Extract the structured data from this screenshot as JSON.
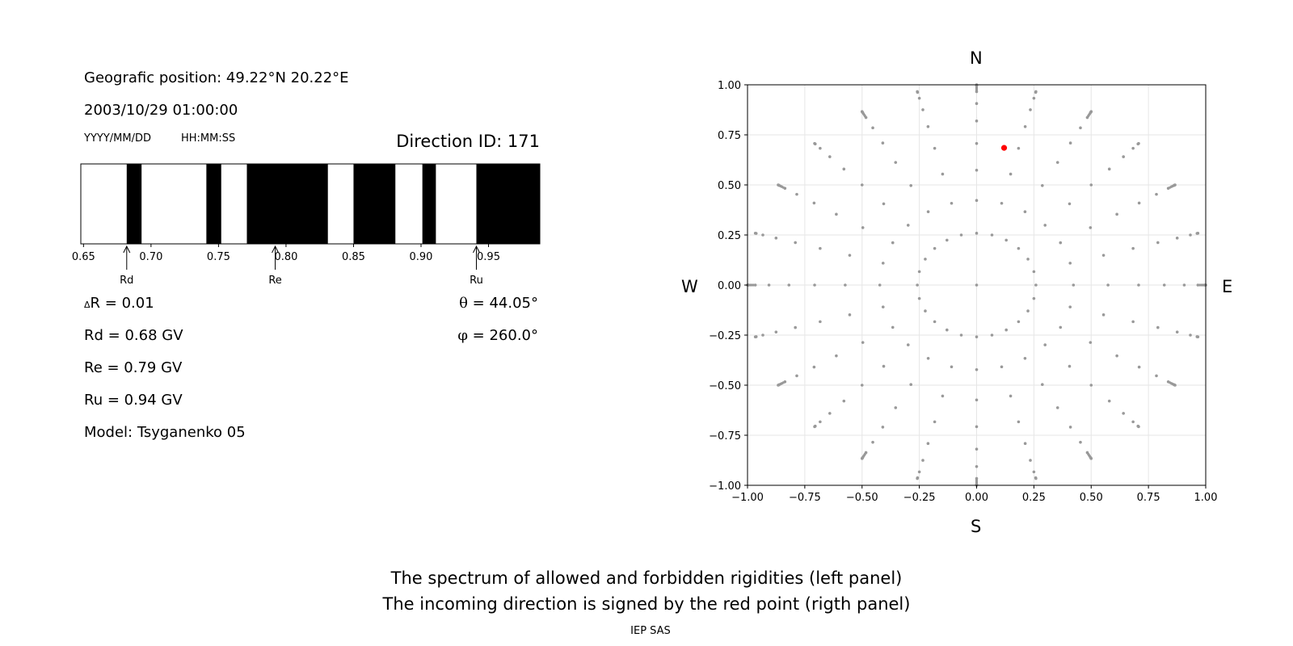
{
  "left_panel": {
    "geo_position": "Geografic position: 49.22°N 20.22°E",
    "datetime": "2003/10/29 01:00:00",
    "date_format": "YYYY/MM/DD",
    "time_format": "HH:MM:SS",
    "direction_id": "Direction ID: 171",
    "delta_r_symbol": "Δ",
    "delta_r_text": "R = 0.01",
    "rd_text": "Rd = 0.68 GV",
    "re_text": "Re = 0.79 GV",
    "ru_text": "Ru = 0.94 GV",
    "model": "Model: Tsyganenko 05",
    "theta_symbol": "θ",
    "theta_text": " = 44.05°",
    "phi_symbol": "φ",
    "phi_text": " = 260.0°"
  },
  "spectrum": {
    "xlim": [
      0.648,
      0.988
    ],
    "ticks": [
      0.65,
      0.7,
      0.75,
      0.8,
      0.85,
      0.9,
      0.95
    ],
    "tick_labels": [
      "0.65",
      "0.70",
      "0.75",
      "0.80",
      "0.85",
      "0.90",
      "0.95"
    ],
    "forbidden_bands": [
      [
        0.682,
        0.693
      ],
      [
        0.741,
        0.752
      ],
      [
        0.771,
        0.831
      ],
      [
        0.85,
        0.881
      ],
      [
        0.901,
        0.911
      ],
      [
        0.941,
        0.988
      ]
    ],
    "markers": [
      {
        "label": "Rd",
        "value": 0.682
      },
      {
        "label": "Re",
        "value": 0.792
      },
      {
        "label": "Ru",
        "value": 0.941
      }
    ]
  },
  "chart_data": {
    "type": "scatter",
    "xlim": [
      -1.0,
      1.0
    ],
    "ylim": [
      -1.0,
      1.0
    ],
    "xticks": [
      "−1.00",
      "−0.75",
      "−0.50",
      "−0.25",
      "0.00",
      "0.25",
      "0.50",
      "0.75",
      "1.00"
    ],
    "yticks": [
      "1.00",
      "0.75",
      "0.50",
      "0.25",
      "0.00",
      "−0.25",
      "−0.50",
      "−0.75",
      "−1.00"
    ],
    "grid": true,
    "directions": {
      "N": "N",
      "S": "S",
      "W": "W",
      "E": "E"
    },
    "grid_series": {
      "color": "#999999",
      "zenith_deg": [
        15,
        25,
        35,
        45,
        55,
        65,
        75,
        85,
        90
      ],
      "azimuth_step_deg": 15
    },
    "highlight_point": {
      "x": 0.12,
      "y": 0.685,
      "color": "#ff0000"
    }
  },
  "caption": {
    "line1": "The spectrum of allowed and forbidden rigidities (left panel)",
    "line2": "The incoming direction is signed by the red point (rigth panel)",
    "credit": "IEP SAS"
  }
}
